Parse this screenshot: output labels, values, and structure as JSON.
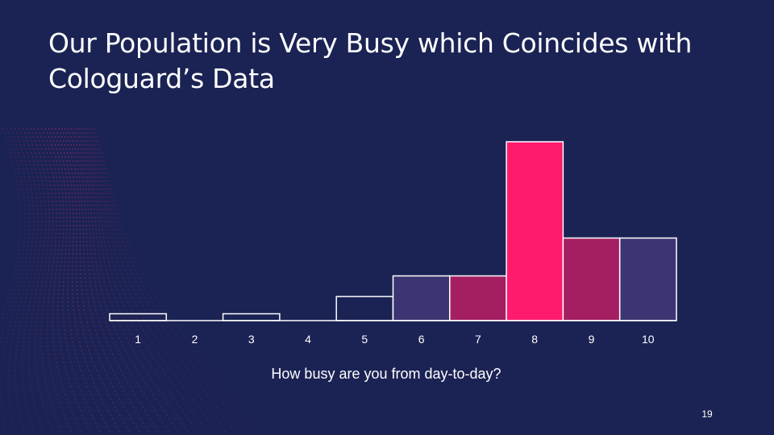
{
  "slide": {
    "title": "Our Population is Very Busy which Coincides with Cologuard’s Data",
    "page_number": "19"
  },
  "colors": {
    "background": "#1b2354",
    "outline": "#ffffff",
    "pink": "#ff1a6e",
    "magenta": "#a41f62",
    "purple": "#3c3573",
    "wave": "#e0306a"
  },
  "chart_data": {
    "type": "bar",
    "categories": [
      "1",
      "2",
      "3",
      "4",
      "5",
      "6",
      "7",
      "8",
      "9",
      "10"
    ],
    "values": [
      2,
      0,
      2,
      0,
      7,
      13,
      13,
      52,
      24,
      24
    ],
    "bar_fills": [
      "none",
      "none",
      "none",
      "none",
      "none",
      "purple",
      "magenta",
      "pink",
      "magenta",
      "purple"
    ],
    "title": "",
    "xlabel": "How busy are you from day-to-day?",
    "ylabel": "",
    "ylim": [
      0,
      52
    ],
    "grid": false,
    "legend": "none",
    "gap": 0
  }
}
